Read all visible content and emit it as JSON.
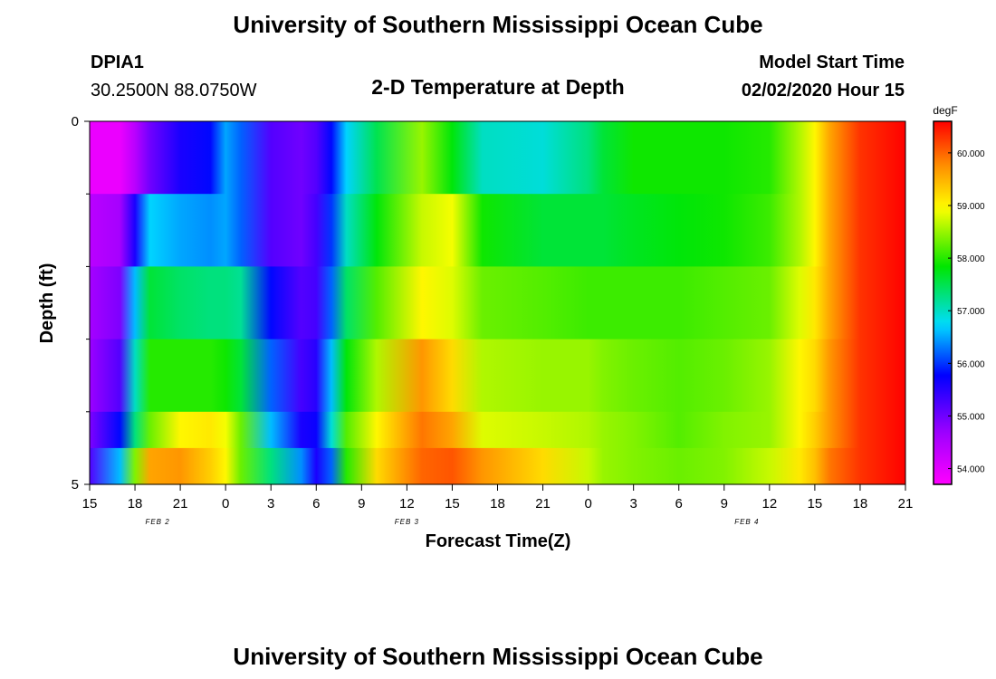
{
  "page": {
    "title_top": "University of Southern Mississippi Ocean Cube",
    "title_bottom": "University of Southern Mississippi Ocean Cube"
  },
  "header": {
    "station": "DPIA1",
    "location": "30.2500N 88.0750W",
    "plot_title": "2-D Temperature at Depth",
    "model_label": "Model Start Time",
    "model_time": "02/02/2020 Hour 15"
  },
  "chart_data": {
    "type": "heatmap",
    "title": "2-D Temperature at Depth",
    "xlabel": "Forecast Time(Z)",
    "ylabel": "Depth (ft)",
    "x_ticks": [
      "15",
      "18",
      "21",
      "0",
      "3",
      "6",
      "9",
      "12",
      "15",
      "18",
      "21",
      "0",
      "3",
      "6",
      "9",
      "12",
      "15",
      "18",
      "21"
    ],
    "x_tick_hours": [
      0,
      3,
      6,
      9,
      12,
      15,
      18,
      21,
      24,
      27,
      30,
      33,
      36,
      39,
      42,
      45,
      48,
      51,
      54
    ],
    "date_labels": [
      {
        "label": "FEB 2",
        "hour": 4.5
      },
      {
        "label": "FEB 3",
        "hour": 21
      },
      {
        "label": "FEB 4",
        "hour": 43.5
      }
    ],
    "xlim": [
      0,
      54
    ],
    "y_ticks": [
      "0",
      "5"
    ],
    "ylim": [
      0,
      5
    ],
    "colorbar": {
      "unit": "degF",
      "range": [
        53.7,
        60.6
      ],
      "ticks": [
        "54.000",
        "55.000",
        "56.000",
        "57.000",
        "58.000",
        "59.000",
        "60.000"
      ],
      "tick_values": [
        54,
        55,
        56,
        57,
        58,
        59,
        60
      ]
    },
    "grid": false,
    "series": [
      {
        "depth": 0.5,
        "t": [
          0,
          2,
          3,
          4,
          6,
          8,
          9,
          10,
          12,
          14,
          15,
          16,
          17,
          19,
          22,
          24,
          26,
          30,
          33,
          34,
          36,
          39,
          42,
          45,
          47,
          48,
          49,
          51,
          54
        ],
        "v": [
          53.9,
          53.9,
          54.4,
          55.0,
          55.6,
          55.8,
          56.5,
          56.2,
          55.2,
          55.0,
          55.2,
          55.8,
          56.7,
          57.5,
          58.5,
          57.8,
          57.0,
          56.9,
          57.3,
          57.6,
          57.9,
          57.9,
          57.9,
          58.0,
          58.6,
          59.0,
          59.6,
          60.3,
          60.6
        ]
      },
      {
        "depth": 1.5,
        "t": [
          0,
          2,
          3,
          4,
          6,
          8,
          9,
          10,
          12,
          14,
          15,
          16,
          17,
          19,
          22,
          24,
          26,
          30,
          33,
          34,
          36,
          39,
          42,
          45,
          47,
          48,
          49,
          51,
          54
        ],
        "v": [
          54.4,
          54.6,
          55.6,
          56.7,
          56.5,
          56.4,
          56.5,
          56.2,
          55.2,
          55.0,
          55.3,
          56.0,
          57.0,
          57.8,
          58.7,
          58.9,
          57.9,
          57.6,
          57.6,
          57.6,
          57.7,
          57.8,
          57.9,
          58.1,
          58.6,
          59.0,
          59.6,
          60.3,
          60.6
        ]
      },
      {
        "depth": 2.5,
        "t": [
          0,
          2,
          3,
          4,
          6,
          8,
          9,
          10,
          12,
          14,
          15,
          16,
          17,
          19,
          22,
          24,
          26,
          30,
          33,
          34,
          36,
          39,
          42,
          45,
          47,
          48,
          49,
          51,
          54
        ],
        "v": [
          54.6,
          54.9,
          56.6,
          57.6,
          57.4,
          57.3,
          57.3,
          57.2,
          55.8,
          55.2,
          55.3,
          56.2,
          57.4,
          58.2,
          59.0,
          58.8,
          58.3,
          58.2,
          58.1,
          58.1,
          58.1,
          58.1,
          58.2,
          58.3,
          58.8,
          59.1,
          59.6,
          60.3,
          60.6
        ]
      },
      {
        "depth": 3.5,
        "t": [
          0,
          2,
          3,
          4,
          6,
          8,
          9,
          10,
          12,
          14,
          15,
          16,
          17,
          19,
          22,
          24,
          26,
          30,
          33,
          34,
          36,
          39,
          42,
          45,
          47,
          48,
          49,
          51,
          54
        ],
        "v": [
          54.7,
          55.2,
          57.0,
          58.0,
          58.0,
          58.0,
          57.9,
          57.6,
          56.2,
          55.3,
          55.5,
          56.6,
          57.8,
          58.6,
          59.7,
          59.2,
          58.6,
          58.5,
          58.5,
          58.4,
          58.3,
          58.2,
          58.3,
          58.5,
          59.0,
          59.2,
          59.7,
          60.3,
          60.6
        ]
      },
      {
        "depth": 4.5,
        "t": [
          0,
          2,
          3,
          4,
          6,
          8,
          9,
          10,
          12,
          14,
          15,
          16,
          17,
          19,
          22,
          24,
          26,
          30,
          33,
          34,
          36,
          39,
          42,
          45,
          47,
          48,
          49,
          51,
          54
        ],
        "v": [
          54.9,
          55.8,
          57.3,
          58.3,
          59.0,
          59.1,
          58.9,
          58.3,
          56.6,
          55.6,
          55.7,
          56.9,
          58.2,
          59.0,
          59.9,
          59.6,
          58.8,
          58.7,
          58.6,
          58.5,
          58.4,
          58.2,
          58.4,
          58.5,
          59.0,
          59.3,
          59.7,
          60.3,
          60.6
        ]
      },
      {
        "depth": 5.0,
        "t": [
          0,
          2,
          3,
          4,
          6,
          8,
          9,
          10,
          12,
          14,
          15,
          16,
          17,
          19,
          22,
          24,
          26,
          30,
          33,
          34,
          36,
          39,
          42,
          45,
          47,
          48,
          49,
          51,
          54
        ],
        "v": [
          55.2,
          56.6,
          58.4,
          59.6,
          59.7,
          59.3,
          59.0,
          58.3,
          57.3,
          56.4,
          55.6,
          56.2,
          58.0,
          59.2,
          60.0,
          60.1,
          59.7,
          59.2,
          58.7,
          58.5,
          58.4,
          58.3,
          58.4,
          58.7,
          59.1,
          59.4,
          59.9,
          60.3,
          60.6
        ]
      }
    ]
  }
}
